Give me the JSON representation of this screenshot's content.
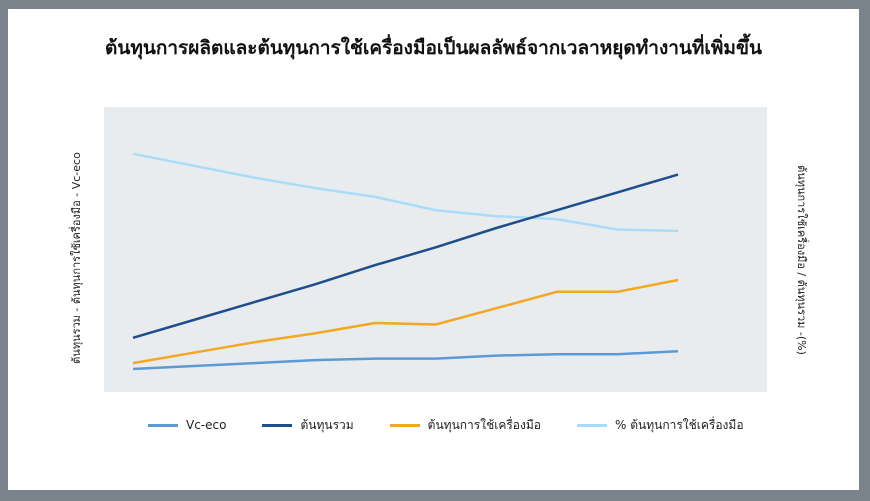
{
  "chart_data": {
    "type": "line",
    "title": "ต้นทุนการผลิตและต้นทุนการใช้เครื่องมือเป็นผลลัพธ์จากเวลาหยุดทำงานที่เพิ่มขึ้น",
    "ylabel_left": "ต้นทุนรวม - ต้นทุนการใช้เครื่องมือ - Vc-eco",
    "ylabel_right": "ต้นทุนการใช้เครื่องมือ / ต้นทุนรวม -(%)",
    "x": [
      1,
      2,
      3,
      4,
      5,
      6,
      7,
      8,
      9,
      10
    ],
    "grid": false,
    "legend_position": "bottom",
    "series": [
      {
        "name": "Vc-eco",
        "color": "#5b9bd5",
        "values": [
          0,
          2,
          4,
          6,
          7,
          7,
          9,
          10,
          10,
          12
        ]
      },
      {
        "name": "ต้นทุนรวม",
        "color": "#1f4e8c",
        "values": [
          21,
          33,
          45,
          57,
          70,
          82,
          95,
          107,
          119,
          131
        ]
      },
      {
        "name": "ต้นทุนการใช้เครื่องมือ",
        "color": "#f5a623",
        "values": [
          4,
          11,
          18,
          24,
          31,
          30,
          41,
          52,
          52,
          60
        ]
      },
      {
        "name": "% ต้นทุนการใช้เครื่องมือ",
        "color": "#a9dcf7",
        "values": [
          145,
          137,
          129,
          122,
          116,
          107,
          103,
          101,
          94,
          93
        ]
      }
    ],
    "ylim": [
      0,
      155
    ]
  }
}
